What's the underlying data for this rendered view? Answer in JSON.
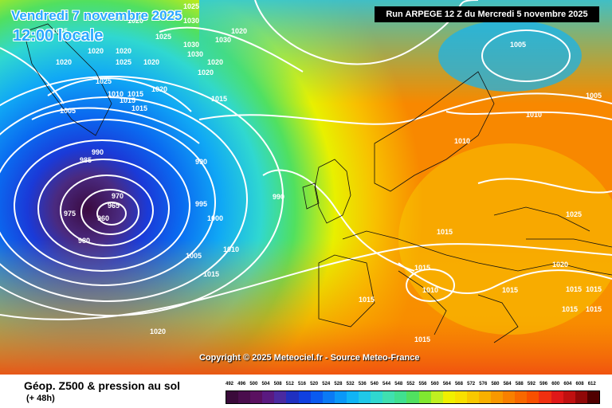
{
  "header": {
    "run_info": "Run ARPEGE 12 Z du Mercredi 5 novembre 2025",
    "date_line": "Vendredi 7 novembre 2025",
    "time_line": "12:00 locale"
  },
  "copyright": "Copyright © 2025 Meteociel.fr - Source Meteo-France",
  "legend": {
    "title": "Géop. Z500 & pression au sol",
    "subtitle": "(+ 48h)",
    "scale_values": [
      "492",
      "496",
      "500",
      "504",
      "508",
      "512",
      "516",
      "520",
      "524",
      "528",
      "532",
      "536",
      "540",
      "544",
      "548",
      "552",
      "556",
      "560",
      "564",
      "568",
      "572",
      "576",
      "580",
      "584",
      "588",
      "592",
      "596",
      "600",
      "604",
      "608",
      "612"
    ],
    "scale_colors": [
      "#3a0a3a",
      "#4a0d4d",
      "#5a1060",
      "#5a1a80",
      "#4a2aa0",
      "#2030c0",
      "#1040e0",
      "#0a5af0",
      "#0a7af5",
      "#0a98f8",
      "#10b4f5",
      "#20c8e8",
      "#30d8d0",
      "#40e0b0",
      "#40e090",
      "#50e060",
      "#80e830",
      "#c0f020",
      "#f0f000",
      "#f8e000",
      "#f8c800",
      "#f8b000",
      "#f89800",
      "#f88000",
      "#f86800",
      "#f85000",
      "#f03010",
      "#e01818",
      "#c01010",
      "#900808",
      "#500000"
    ]
  },
  "pressure_labels": [
    "1025",
    "1020",
    "1030",
    "1025",
    "1020",
    "1025",
    "1030",
    "1030",
    "1020",
    "1020",
    "1020",
    "1025",
    "1020",
    "1030",
    "1020",
    "1020",
    "1025",
    "1010",
    "1015",
    "1020",
    "1015",
    "1015",
    "1015",
    "1005",
    "990",
    "985",
    "970",
    "965",
    "960",
    "975",
    "980",
    "990",
    "995",
    "1000",
    "990",
    "1005",
    "1010",
    "1015",
    "1020",
    "1005",
    "1010",
    "1010",
    "1005",
    "1015",
    "1025",
    "1015",
    "1015",
    "1010",
    "1020",
    "1015",
    "1015",
    "1015",
    "1015",
    "1015",
    "1015"
  ]
}
